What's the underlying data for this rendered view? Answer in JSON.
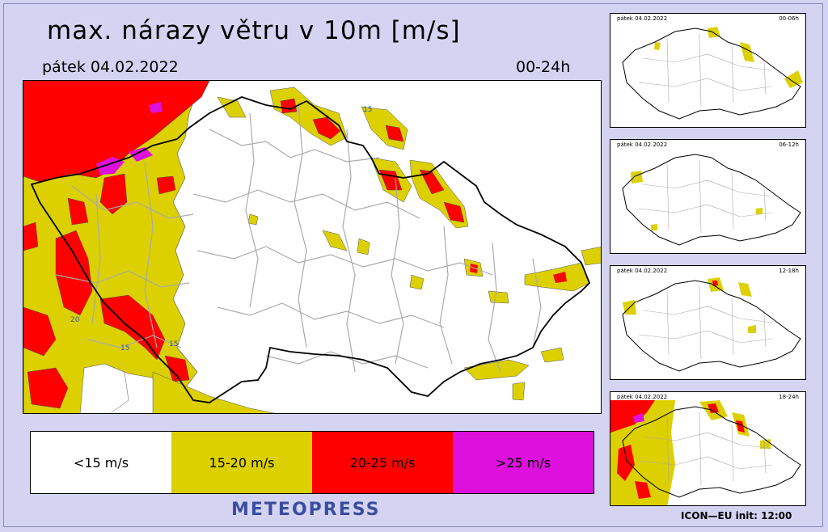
{
  "header": {
    "title": "max. nárazy větru v 10m [m/s]",
    "date": "pátek 04.02.2022",
    "range": "00-24h"
  },
  "main_map": {
    "contour_labels": [
      "15",
      "20",
      "15",
      "15"
    ]
  },
  "legend": {
    "items": [
      {
        "label": "<15 m/s",
        "color": "#ffffff"
      },
      {
        "label": "15-20 m/s",
        "color": "#dcd000"
      },
      {
        "label": "20-25 m/s",
        "color": "#ff0000"
      },
      {
        "label": ">25 m/s",
        "color": "#dd10dd"
      }
    ]
  },
  "thumbnails": [
    {
      "date": "pátek 04.02.2022",
      "range": "00-06h"
    },
    {
      "date": "pátek 04.02.2022",
      "range": "06-12h"
    },
    {
      "date": "pátek 04.02.2022",
      "range": "12-18h"
    },
    {
      "date": "pátek 04.02.2022",
      "range": "18-24h"
    }
  ],
  "footer": {
    "brand": "METEOPRESS",
    "model": "ICON—EU  init:  12:00"
  },
  "colors": {
    "background": "#d4d4f2",
    "yellow": "#dcd000",
    "red": "#ff0000",
    "magenta": "#dd10dd",
    "brand": "#3b4d9e"
  }
}
